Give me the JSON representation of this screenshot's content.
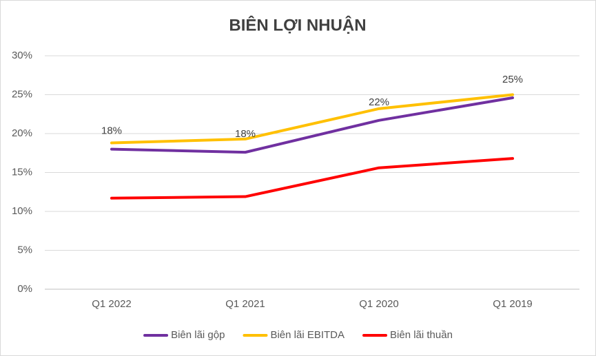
{
  "chart_data": {
    "type": "line",
    "title": "BIÊN LỢI NHUẬN",
    "categories": [
      "Q1 2022",
      "Q1 2021",
      "Q1 2020",
      "Q1 2019"
    ],
    "series": [
      {
        "name": "Biên lãi gộp",
        "color": "#7030a0",
        "values": [
          18.0,
          17.6,
          21.7,
          24.6
        ],
        "value_labels": [
          "18%",
          "18%",
          "22%",
          "25%"
        ]
      },
      {
        "name": "Biên lãi EBITDA",
        "color": "#ffc000",
        "values": [
          18.8,
          19.3,
          23.2,
          25.0
        ]
      },
      {
        "name": "Biên lãi thuần",
        "color": "#ff0000",
        "values": [
          11.7,
          11.9,
          15.6,
          16.8
        ]
      }
    ],
    "ylim": [
      0,
      30
    ],
    "yticks": [
      {
        "value": 0,
        "label": "0%"
      },
      {
        "value": 5,
        "label": "5%"
      },
      {
        "value": 10,
        "label": "10%"
      },
      {
        "value": 15,
        "label": "15%"
      },
      {
        "value": 20,
        "label": "20%"
      },
      {
        "value": 25,
        "label": "25%"
      },
      {
        "value": 30,
        "label": "30%"
      }
    ],
    "grid": true,
    "legend": "bottom"
  }
}
